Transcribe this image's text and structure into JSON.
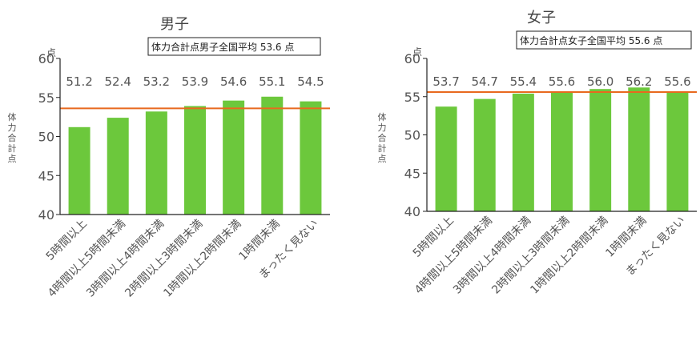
{
  "chart_data": [
    {
      "type": "bar",
      "title": "男子",
      "annotation": "体力合計点男子全国平均",
      "average_value": "53.6",
      "average_unit": "点",
      "average": 53.6,
      "ylabel": "体力合計点",
      "y_unit": "点",
      "ylim": [
        40,
        60
      ],
      "yticks": [
        40,
        45,
        50,
        55,
        60
      ],
      "categories": [
        "5時間以上",
        "4時間以上5時間未満",
        "3時間以上4時間未満",
        "2時間以上3時間未満",
        "1時間以上2時間未満",
        "1時間未満",
        "まったく見ない"
      ],
      "values": [
        51.2,
        52.4,
        53.2,
        53.9,
        54.6,
        55.1,
        54.5
      ],
      "data_labels": [
        "51.2",
        "52.4",
        "53.2",
        "53.9",
        "54.6",
        "55.1",
        "54.5"
      ],
      "grid": false
    },
    {
      "type": "bar",
      "title": "女子",
      "annotation": "体力合計点女子全国平均",
      "average_value": "55.6",
      "average_unit": "点",
      "average": 55.6,
      "ylabel": "体力合計点",
      "y_unit": "点",
      "ylim": [
        40,
        60
      ],
      "yticks": [
        40,
        45,
        50,
        55,
        60
      ],
      "categories": [
        "5時間以上",
        "4時間以上5時間未満",
        "3時間以上4時間未満",
        "2時間以上3時間未満",
        "1時間以上2時間未満",
        "1時間未満",
        "まったく見ない"
      ],
      "values": [
        53.7,
        54.7,
        55.4,
        55.6,
        56.0,
        56.2,
        55.6
      ],
      "data_labels": [
        "53.7",
        "54.7",
        "55.4",
        "55.6",
        "56.0",
        "56.2",
        "55.6"
      ],
      "grid": false
    }
  ],
  "colors": {
    "bar": "#6cc83c",
    "average_line": "#e8691e",
    "text": "#555555",
    "axis": "#222222"
  }
}
